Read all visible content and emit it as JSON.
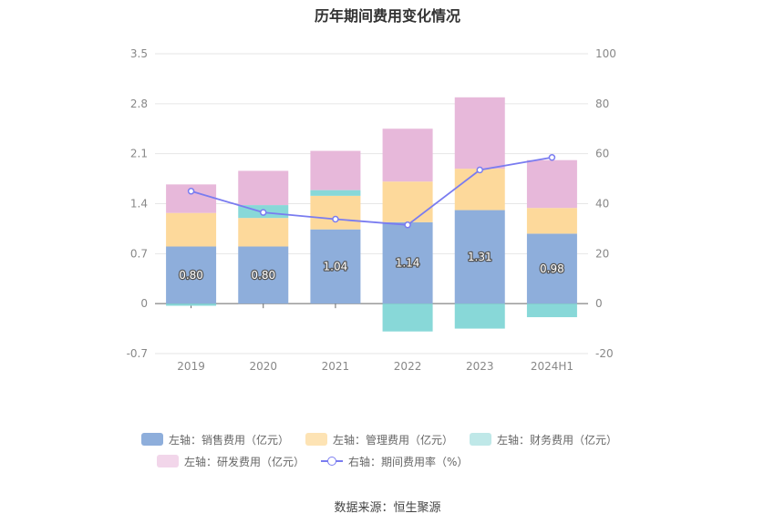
{
  "chart_data": {
    "type": "bar",
    "title": "历年期间费用变化情况",
    "categories": [
      "2019",
      "2020",
      "2021",
      "2022",
      "2023",
      "2024H1"
    ],
    "y_left": {
      "ticks": [
        "3.5",
        "2.8",
        "2.1",
        "1.4",
        "0.7",
        "0",
        "-0.7"
      ],
      "ylim": [
        -0.7,
        3.5
      ]
    },
    "y_right": {
      "ticks": [
        "100",
        "80",
        "60",
        "40",
        "20",
        "0",
        "-20"
      ],
      "ylim": [
        -20,
        100
      ]
    },
    "grid": true,
    "stacked": true,
    "series": [
      {
        "name": "左轴：销售费用（亿元）",
        "color": "#8eaedb",
        "axis": "left",
        "labels": true,
        "values": [
          0.8,
          0.8,
          1.04,
          1.14,
          1.31,
          0.98
        ]
      },
      {
        "name": "左轴：管理费用（亿元）",
        "color": "#fdd99b",
        "axis": "left",
        "values": [
          0.47,
          0.4,
          0.47,
          0.57,
          0.58,
          0.36
        ]
      },
      {
        "name": "左轴：财务费用（亿元）",
        "color": "#88d8d8",
        "axis": "left",
        "values": [
          -0.03,
          0.18,
          0.08,
          -0.39,
          -0.35,
          -0.19
        ]
      },
      {
        "name": "左轴：研发费用（亿元）",
        "color": "#e7b8da",
        "axis": "left",
        "values": [
          0.4,
          0.48,
          0.55,
          0.74,
          1.0,
          0.67
        ]
      },
      {
        "name": "右轴：期间费用率（%）",
        "color": "#7a7cf0",
        "axis": "right",
        "type": "line",
        "values": [
          45.0,
          36.5,
          33.8,
          31.5,
          53.5,
          58.5
        ]
      }
    ],
    "legend_position": "bottom"
  },
  "legend": [
    {
      "label": "左轴：销售费用（亿元）",
      "color": "#8eaedb",
      "kind": "bar"
    },
    {
      "label": "左轴：管理费用（亿元）",
      "color": "#fde3b4",
      "kind": "bar"
    },
    {
      "label": "左轴：财务费用（亿元）",
      "color": "#bfe8e8",
      "kind": "bar"
    },
    {
      "label": "左轴：研发费用（亿元）",
      "color": "#f2d6ea",
      "kind": "bar"
    },
    {
      "label": "右轴：期间费用率（%）",
      "color": "#7a7cf0",
      "kind": "line"
    }
  ],
  "source": "数据来源：恒生聚源"
}
